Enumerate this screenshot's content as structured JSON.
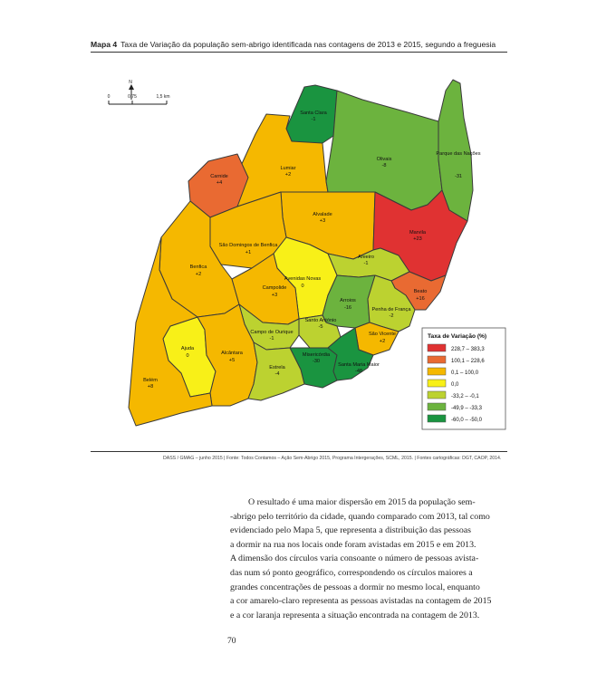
{
  "header": {
    "label": "Mapa 4",
    "title": "Taxa de Variação da população sem-abrigo identificada nas contagens de 2013 e 2015, segundo a freguesia"
  },
  "scale": {
    "labels": [
      "0",
      "0,75",
      "1,5 km"
    ],
    "north": "N"
  },
  "map": {
    "legend_title": "Taxa de Variação (%)",
    "classes": [
      {
        "label": "228,7 – 383,3",
        "color": "#e03232"
      },
      {
        "label": "100,1 – 228,6",
        "color": "#e96a32"
      },
      {
        "label": "0,1 – 100,0",
        "color": "#f5b800"
      },
      {
        "label": "0,0",
        "color": "#f8f018"
      },
      {
        "label": "-33,2 – -0,1",
        "color": "#bcd230"
      },
      {
        "label": "-49,9 – -33,3",
        "color": "#6cb33e"
      },
      {
        "label": "-60,0 – -50,0",
        "color": "#1a9440"
      }
    ],
    "regions": [
      {
        "name": "Santa Clara",
        "value": "-1",
        "cls": 6
      },
      {
        "name": "Lumiar",
        "value": "+2",
        "cls": 2
      },
      {
        "name": "Carnide",
        "value": "+4",
        "cls": 1
      },
      {
        "name": "Olivais",
        "value": "-8",
        "cls": 5
      },
      {
        "name": "Parque das Nações",
        "value": "-31",
        "cls": 5
      },
      {
        "name": "Alvalade",
        "value": "+3",
        "cls": 2
      },
      {
        "name": "São Domingos de Benfica",
        "value": "+1",
        "cls": 2
      },
      {
        "name": "Marvila",
        "value": "+23",
        "cls": 0
      },
      {
        "name": "Benfica",
        "value": "+2",
        "cls": 2
      },
      {
        "name": "Areeiro",
        "value": "-1",
        "cls": 4
      },
      {
        "name": "Avenidas Novas",
        "value": "0",
        "cls": 3
      },
      {
        "name": "Campolide",
        "value": "+3",
        "cls": 2
      },
      {
        "name": "Arroios",
        "value": "-16",
        "cls": 5
      },
      {
        "name": "Beato",
        "value": "+16",
        "cls": 1
      },
      {
        "name": "Penha de França",
        "value": "-2",
        "cls": 4
      },
      {
        "name": "Santo António",
        "value": "-5",
        "cls": 4
      },
      {
        "name": "São Vicente",
        "value": "+2",
        "cls": 2
      },
      {
        "name": "Campo de Ourique",
        "value": "-1",
        "cls": 4
      },
      {
        "name": "Ajuda",
        "value": "0",
        "cls": 3
      },
      {
        "name": "Alcântara",
        "value": "+5",
        "cls": 2
      },
      {
        "name": "Misericórdia",
        "value": "-30",
        "cls": 6
      },
      {
        "name": "Santa Maria Maior",
        "value": "-48",
        "cls": 6
      },
      {
        "name": "Estrela",
        "value": "-4",
        "cls": 4
      },
      {
        "name": "Belém",
        "value": "+8",
        "cls": 2
      }
    ]
  },
  "source": "DASS / GMAG – junho 2015 | Fonte: Todos Contamos – Ação Sem-Abrigo 2015, Programa Intergerações, SCML, 2015. | Fontes cartográficas: DGT, CAOP, 2014.",
  "body": {
    "lines": [
      "O resultado é uma maior dispersão em 2015 da população sem-",
      "-abrigo pelo território da cidade, quando comparado com 2013, tal como",
      "evidenciado pelo Mapa 5, que representa a distribuição das pessoas",
      "a dormir na rua nos locais onde foram avistadas em 2015 e em 2013.",
      "A dimensão dos círculos varia consoante o número de pessoas avista-",
      "das num só ponto geográfico, correspondendo os círculos maiores a",
      "grandes concentrações de pessoas a dormir no mesmo local, enquanto",
      "a cor amarelo-claro representa as pessoas avistadas na contagem de 2015",
      "e a cor laranja representa a situação encontrada na contagem de 2013."
    ]
  },
  "page_number": "70"
}
